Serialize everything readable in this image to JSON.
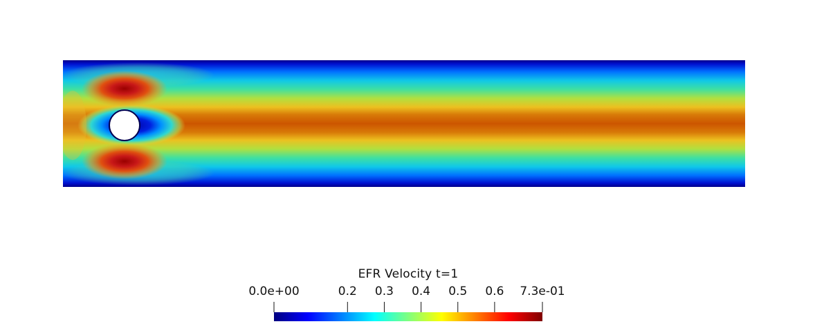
{
  "colorbar": {
    "title": "EFR Velocity t=1",
    "range": [
      0.0,
      0.73
    ],
    "ticks": [
      {
        "value": 0.0,
        "label": "0.0e+00"
      },
      {
        "value": 0.2,
        "label": "0.2"
      },
      {
        "value": 0.3,
        "label": "0.3"
      },
      {
        "value": 0.4,
        "label": "0.4"
      },
      {
        "value": 0.5,
        "label": "0.5"
      },
      {
        "value": 0.6,
        "label": "0.6"
      },
      {
        "value": 0.73,
        "label": "7.3e-01"
      }
    ],
    "colormap": [
      "#00007f",
      "#0000ff",
      "#007fff",
      "#00ffff",
      "#7fff7f",
      "#ffff00",
      "#ff7f00",
      "#ff0000",
      "#7f0000"
    ]
  }
}
